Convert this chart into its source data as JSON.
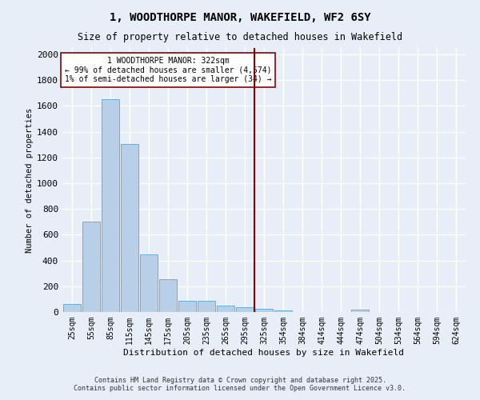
{
  "title": "1, WOODTHORPE MANOR, WAKEFIELD, WF2 6SY",
  "subtitle": "Size of property relative to detached houses in Wakefield",
  "xlabel": "Distribution of detached houses by size in Wakefield",
  "ylabel": "Number of detached properties",
  "categories": [
    "25sqm",
    "55sqm",
    "85sqm",
    "115sqm",
    "145sqm",
    "175sqm",
    "205sqm",
    "235sqm",
    "265sqm",
    "295sqm",
    "325sqm",
    "354sqm",
    "384sqm",
    "414sqm",
    "444sqm",
    "474sqm",
    "504sqm",
    "534sqm",
    "564sqm",
    "594sqm",
    "624sqm"
  ],
  "values": [
    65,
    700,
    1650,
    1305,
    450,
    255,
    90,
    85,
    50,
    40,
    25,
    10,
    0,
    0,
    0,
    20,
    0,
    0,
    0,
    0,
    0
  ],
  "bar_color": "#b8cfe8",
  "bar_edge_color": "#6aaed6",
  "vline_pos": 10.0,
  "vline_label": "1 WOODTHORPE MANOR: 322sqm",
  "vline_note1": "← 99% of detached houses are smaller (4,574)",
  "vline_note2": "1% of semi-detached houses are larger (34) →",
  "vline_color": "#8b0000",
  "box_color": "#8b0000",
  "ylim": [
    0,
    2050
  ],
  "yticks": [
    0,
    200,
    400,
    600,
    800,
    1000,
    1200,
    1400,
    1600,
    1800,
    2000
  ],
  "background_color": "#e8eef7",
  "grid_color": "#ffffff",
  "footer1": "Contains HM Land Registry data © Crown copyright and database right 2025.",
  "footer2": "Contains public sector information licensed under the Open Government Licence v3.0."
}
